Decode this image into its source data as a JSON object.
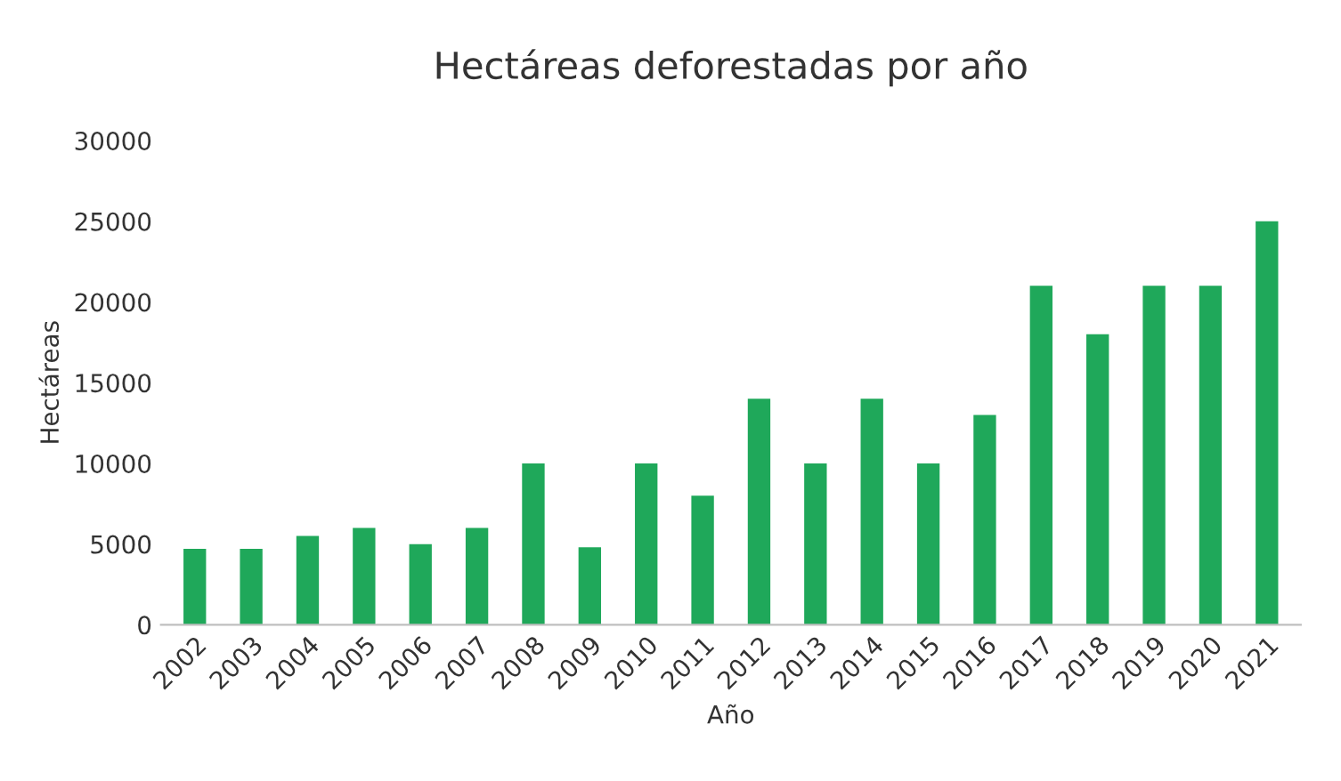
{
  "chart_data": {
    "type": "bar",
    "title": "Hectáreas deforestadas por año",
    "xlabel": "Año",
    "ylabel": "Hectáreas",
    "categories": [
      "2002",
      "2003",
      "2004",
      "2005",
      "2006",
      "2007",
      "2008",
      "2009",
      "2010",
      "2011",
      "2012",
      "2013",
      "2014",
      "2015",
      "2016",
      "2017",
      "2018",
      "2019",
      "2020",
      "2021"
    ],
    "values": [
      4700,
      4700,
      5500,
      6000,
      5000,
      6000,
      10000,
      4800,
      10000,
      8000,
      14000,
      10000,
      14000,
      10000,
      13000,
      21000,
      18000,
      21000,
      21000,
      25000
    ],
    "color": "#1fa85a",
    "ylim": [
      0,
      30000
    ],
    "yticks": [
      0,
      5000,
      10000,
      15000,
      20000,
      25000,
      30000
    ],
    "grid": false,
    "legend": false
  }
}
